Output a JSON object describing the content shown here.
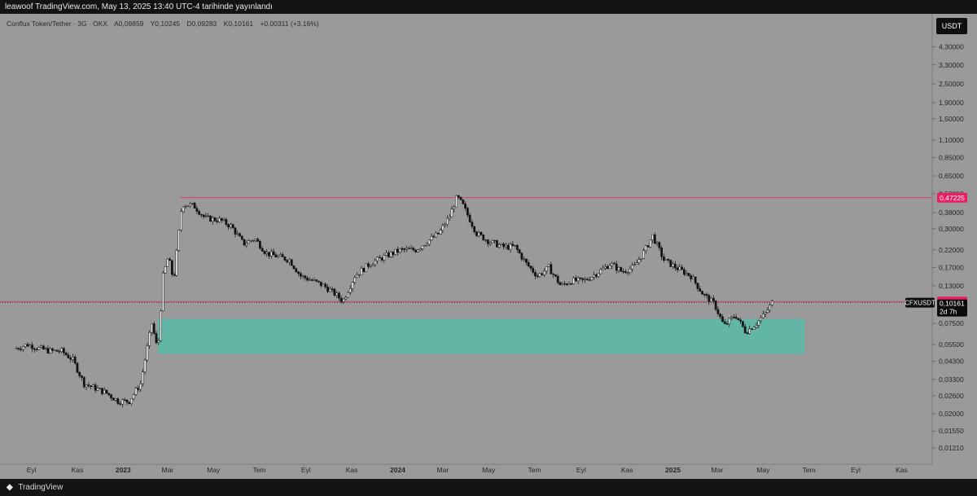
{
  "header": {
    "published_text": "leawoof TradingView.com, May 13, 2025 13:40 UTC-4 tarihinde yayınlandı"
  },
  "legend": {
    "title": "Conflux Token/Tether · 3G · OKX",
    "open": "A0,09859",
    "high": "Y0,10245",
    "low": "D0,09283",
    "close": "K0,10161",
    "change": "+0,00311 (+3,16%)"
  },
  "toolbar": {
    "currency_label": "USDT"
  },
  "footer": {
    "logo_icon": "tradingview-logo-icon",
    "brand": "TradingView"
  },
  "chart_data": {
    "type": "candlestick",
    "symbol": "CFXUSDT",
    "y_scale": "log",
    "y_ticks": [
      {
        "label": "4,30000",
        "value": 4.3
      },
      {
        "label": "3,30000",
        "value": 3.3
      },
      {
        "label": "2,50000",
        "value": 2.5
      },
      {
        "label": "1,90000",
        "value": 1.9
      },
      {
        "label": "1,50000",
        "value": 1.5
      },
      {
        "label": "1,10000",
        "value": 1.1
      },
      {
        "label": "0,85000",
        "value": 0.85
      },
      {
        "label": "0,65000",
        "value": 0.65
      },
      {
        "label": "0,50000",
        "value": 0.5
      },
      {
        "label": "0,38000",
        "value": 0.38
      },
      {
        "label": "0,30000",
        "value": 0.3
      },
      {
        "label": "0,22000",
        "value": 0.22
      },
      {
        "label": "0,17000",
        "value": 0.17
      },
      {
        "label": "0,13000",
        "value": 0.13
      },
      {
        "label": "0,07500",
        "value": 0.075
      },
      {
        "label": "0,05500",
        "value": 0.055
      },
      {
        "label": "0,04300",
        "value": 0.043
      },
      {
        "label": "0,03300",
        "value": 0.033
      },
      {
        "label": "0,02600",
        "value": 0.026
      },
      {
        "label": "0,02000",
        "value": 0.02
      },
      {
        "label": "0,01550",
        "value": 0.0155
      },
      {
        "label": "0,01210",
        "value": 0.0121
      }
    ],
    "x_ticks": [
      "Eyl",
      "Kas",
      "2023",
      "Mar",
      "May",
      "Tem",
      "Eyl",
      "Kas",
      "2024",
      "Mar",
      "May",
      "Tem",
      "Eyl",
      "Kas",
      "2025",
      "Mar",
      "May",
      "Tem",
      "Eyl",
      "Kas"
    ],
    "price_markers": [
      {
        "label": "0,47225",
        "value": 0.47225,
        "color": "#e91e63"
      },
      {
        "label": "0,10323",
        "value": 0.10323,
        "color": "#e91e63"
      }
    ],
    "current_price": {
      "symbol_label": "CFXUSDT",
      "label": "0,10161",
      "value": 0.10161,
      "countdown": "2d 7h"
    },
    "demand_zone": {
      "low": 0.048,
      "high": 0.08,
      "color": "#4dbfa8"
    },
    "series": [
      {
        "d": "2022-08-12",
        "c": 0.052
      },
      {
        "d": "2022-08-27",
        "c": 0.055
      },
      {
        "d": "2022-09-11",
        "c": 0.052
      },
      {
        "d": "2022-09-26",
        "c": 0.05
      },
      {
        "d": "2022-10-11",
        "c": 0.05
      },
      {
        "d": "2022-10-26",
        "c": 0.044
      },
      {
        "d": "2022-11-10",
        "c": 0.031
      },
      {
        "d": "2022-11-25",
        "c": 0.029
      },
      {
        "d": "2022-12-10",
        "c": 0.027
      },
      {
        "d": "2022-12-25",
        "c": 0.024
      },
      {
        "d": "2023-01-09",
        "c": 0.024
      },
      {
        "d": "2023-01-24",
        "c": 0.031
      },
      {
        "d": "2023-02-08",
        "c": 0.075
      },
      {
        "d": "2023-02-16",
        "c": 0.05
      },
      {
        "d": "2023-02-23",
        "c": 0.15
      },
      {
        "d": "2023-03-02",
        "c": 0.2
      },
      {
        "d": "2023-03-09",
        "c": 0.14
      },
      {
        "d": "2023-03-20",
        "c": 0.43
      },
      {
        "d": "2023-04-05",
        "c": 0.42
      },
      {
        "d": "2023-04-20",
        "c": 0.35
      },
      {
        "d": "2023-05-10",
        "c": 0.34
      },
      {
        "d": "2023-05-25",
        "c": 0.31
      },
      {
        "d": "2023-06-10",
        "c": 0.24
      },
      {
        "d": "2023-06-25",
        "c": 0.26
      },
      {
        "d": "2023-07-10",
        "c": 0.21
      },
      {
        "d": "2023-07-25",
        "c": 0.2
      },
      {
        "d": "2023-08-10",
        "c": 0.19
      },
      {
        "d": "2023-08-25",
        "c": 0.15
      },
      {
        "d": "2023-09-10",
        "c": 0.14
      },
      {
        "d": "2023-09-25",
        "c": 0.13
      },
      {
        "d": "2023-10-10",
        "c": 0.115
      },
      {
        "d": "2023-10-20",
        "c": 0.104
      },
      {
        "d": "2023-11-05",
        "c": 0.15
      },
      {
        "d": "2023-11-25",
        "c": 0.18
      },
      {
        "d": "2023-12-15",
        "c": 0.2
      },
      {
        "d": "2024-01-05",
        "c": 0.22
      },
      {
        "d": "2024-01-25",
        "c": 0.22
      },
      {
        "d": "2024-02-10",
        "c": 0.25
      },
      {
        "d": "2024-02-25",
        "c": 0.28
      },
      {
        "d": "2024-03-10",
        "c": 0.36
      },
      {
        "d": "2024-03-20",
        "c": 0.48
      },
      {
        "d": "2024-03-28",
        "c": 0.42
      },
      {
        "d": "2024-04-15",
        "c": 0.28
      },
      {
        "d": "2024-05-01",
        "c": 0.25
      },
      {
        "d": "2024-05-20",
        "c": 0.23
      },
      {
        "d": "2024-06-05",
        "c": 0.23
      },
      {
        "d": "2024-06-20",
        "c": 0.18
      },
      {
        "d": "2024-07-05",
        "c": 0.15
      },
      {
        "d": "2024-07-20",
        "c": 0.17
      },
      {
        "d": "2024-08-05",
        "c": 0.13
      },
      {
        "d": "2024-08-20",
        "c": 0.14
      },
      {
        "d": "2024-09-05",
        "c": 0.14
      },
      {
        "d": "2024-09-25",
        "c": 0.16
      },
      {
        "d": "2024-10-10",
        "c": 0.18
      },
      {
        "d": "2024-10-25",
        "c": 0.16
      },
      {
        "d": "2024-11-10",
        "c": 0.17
      },
      {
        "d": "2024-11-25",
        "c": 0.22
      },
      {
        "d": "2024-12-05",
        "c": 0.27
      },
      {
        "d": "2024-12-20",
        "c": 0.19
      },
      {
        "d": "2025-01-05",
        "c": 0.17
      },
      {
        "d": "2025-01-25",
        "c": 0.15
      },
      {
        "d": "2025-02-10",
        "c": 0.115
      },
      {
        "d": "2025-02-25",
        "c": 0.1
      },
      {
        "d": "2025-03-10",
        "c": 0.072
      },
      {
        "d": "2025-03-25",
        "c": 0.085
      },
      {
        "d": "2025-04-08",
        "c": 0.066
      },
      {
        "d": "2025-04-22",
        "c": 0.075
      },
      {
        "d": "2025-05-05",
        "c": 0.088
      },
      {
        "d": "2025-05-13",
        "c": 0.10161
      }
    ]
  }
}
